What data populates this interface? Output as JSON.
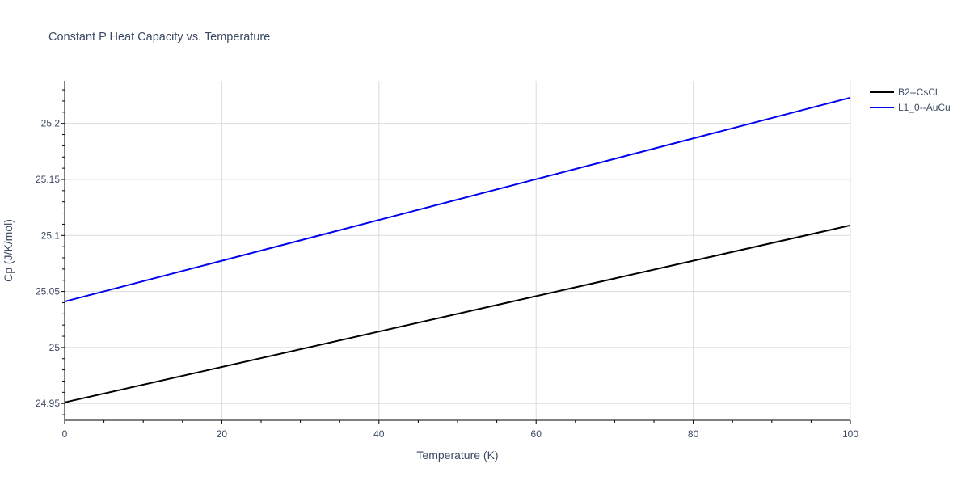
{
  "chart_data": {
    "type": "line",
    "title": "Constant P Heat Capacity vs. Temperature",
    "xlabel": "Temperature (K)",
    "ylabel": "Cp (J/K/mol)",
    "xlim": [
      0,
      100
    ],
    "ylim": [
      24.935,
      25.238
    ],
    "xticks": [
      0,
      20,
      40,
      60,
      80,
      100
    ],
    "xtick_labels": [
      "0",
      "20",
      "40",
      "60",
      "80",
      "100"
    ],
    "yticks": [
      24.95,
      25,
      25.05,
      25.1,
      25.15,
      25.2
    ],
    "ytick_labels": [
      "24.95",
      "25",
      "25.05",
      "25.1",
      "25.15",
      "25.2"
    ],
    "grid": true,
    "legend_position": "top-right, outside plot",
    "series": [
      {
        "name": "B2--CsCl",
        "color": "#000000",
        "x": [
          0,
          100
        ],
        "y": [
          24.951,
          25.109
        ]
      },
      {
        "name": "L1_0--AuCu",
        "color": "#0000ee",
        "x": [
          0,
          100
        ],
        "y": [
          25.041,
          25.223
        ]
      }
    ]
  }
}
